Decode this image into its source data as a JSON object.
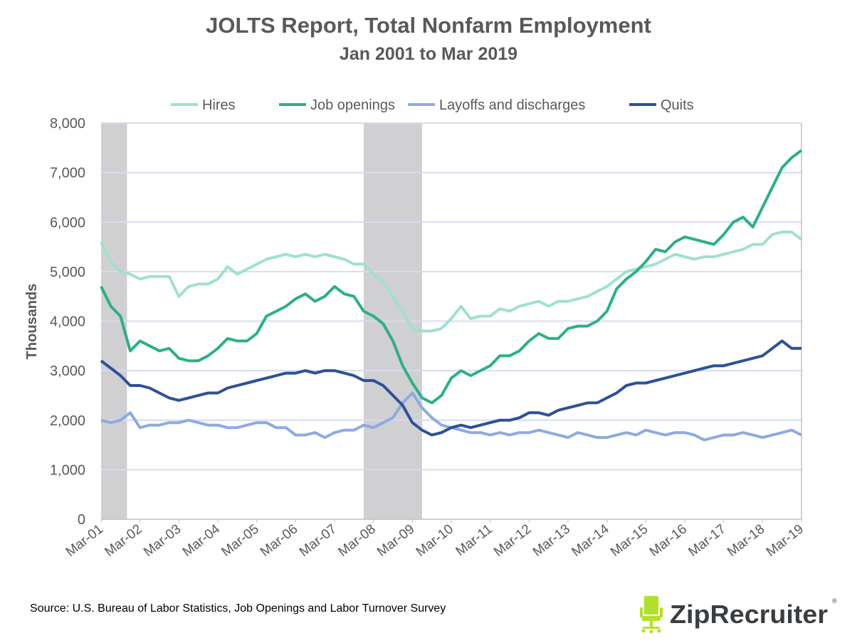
{
  "chart_data": {
    "type": "line",
    "title": "JOLTS Report, Total Nonfarm Employment",
    "subtitle": "Jan 2001 to Mar 2019",
    "ylabel": "Thousands",
    "xlabel": "",
    "ylim": [
      0,
      8000
    ],
    "yticks": [
      "0",
      "1,000",
      "2,000",
      "3,000",
      "4,000",
      "5,000",
      "6,000",
      "7,000",
      "8,000"
    ],
    "ytick_values": [
      0,
      1000,
      2000,
      3000,
      4000,
      5000,
      6000,
      7000,
      8000
    ],
    "xticks": [
      "Mar-01",
      "Mar-02",
      "Mar-03",
      "Mar-04",
      "Mar-05",
      "Mar-06",
      "Mar-07",
      "Mar-08",
      "Mar-09",
      "Mar-10",
      "Mar-11",
      "Mar-12",
      "Mar-13",
      "Mar-14",
      "Mar-15",
      "Mar-16",
      "Mar-17",
      "Mar-18",
      "Mar-19"
    ],
    "xrange": [
      "2001-03",
      "2019-03"
    ],
    "x_sampling": "quarterly from 2001-03 to 2019-03 (Mar, Jun, Sep, Dec)",
    "grid": "horizontal",
    "legend_position": "top",
    "recession_shading": [
      {
        "start": "2001-03",
        "end": "2001-11"
      },
      {
        "start": "2007-12",
        "end": "2009-06"
      }
    ],
    "recession_color": "#d0cfd1",
    "series": [
      {
        "name": "Hires",
        "color": "#9fe1cd",
        "values": [
          5600,
          5200,
          5000,
          4950,
          4850,
          4900,
          4900,
          4900,
          4500,
          4700,
          4750,
          4750,
          4850,
          5100,
          4950,
          5050,
          5150,
          5250,
          5300,
          5350,
          5300,
          5350,
          5300,
          5350,
          5300,
          5250,
          5150,
          5150,
          4950,
          4800,
          4500,
          4200,
          3850,
          3800,
          3800,
          3850,
          4050,
          4300,
          4050,
          4100,
          4100,
          4250,
          4200,
          4300,
          4350,
          4400,
          4300,
          4400,
          4400,
          4450,
          4500,
          4600,
          4700,
          4850,
          5000,
          5050,
          5100,
          5150,
          5250,
          5350,
          5300,
          5250,
          5300,
          5300,
          5350,
          5400,
          5450,
          5550,
          5550,
          5750,
          5800,
          5800,
          5650
        ]
      },
      {
        "name": "Job openings",
        "color": "#2bb087",
        "values": [
          4700,
          4300,
          4100,
          3400,
          3600,
          3500,
          3400,
          3450,
          3250,
          3200,
          3200,
          3300,
          3450,
          3650,
          3600,
          3600,
          3750,
          4100,
          4200,
          4300,
          4450,
          4550,
          4400,
          4500,
          4700,
          4550,
          4500,
          4200,
          4100,
          3950,
          3600,
          3100,
          2750,
          2450,
          2350,
          2500,
          2850,
          3000,
          2900,
          3000,
          3100,
          3300,
          3300,
          3400,
          3600,
          3750,
          3650,
          3650,
          3850,
          3900,
          3900,
          4000,
          4200,
          4650,
          4850,
          5000,
          5200,
          5450,
          5400,
          5600,
          5700,
          5650,
          5600,
          5550,
          5750,
          6000,
          6100,
          5900,
          6300,
          6700,
          7100,
          7300,
          7450
        ]
      },
      {
        "name": "Layoffs and discharges",
        "color": "#8eaadf",
        "values": [
          2000,
          1950,
          2000,
          2150,
          1850,
          1900,
          1900,
          1950,
          1950,
          2000,
          1950,
          1900,
          1900,
          1850,
          1850,
          1900,
          1950,
          1950,
          1850,
          1850,
          1700,
          1700,
          1750,
          1650,
          1750,
          1800,
          1800,
          1900,
          1850,
          1950,
          2050,
          2350,
          2550,
          2250,
          2050,
          1900,
          1850,
          1800,
          1750,
          1750,
          1700,
          1750,
          1700,
          1750,
          1750,
          1800,
          1750,
          1700,
          1650,
          1750,
          1700,
          1650,
          1650,
          1700,
          1750,
          1700,
          1800,
          1750,
          1700,
          1750,
          1750,
          1700,
          1600,
          1650,
          1700,
          1700,
          1750,
          1700,
          1650,
          1700,
          1750,
          1800,
          1700
        ]
      },
      {
        "name": "Quits",
        "color": "#2c5196",
        "values": [
          3200,
          3050,
          2900,
          2700,
          2700,
          2650,
          2550,
          2450,
          2400,
          2450,
          2500,
          2550,
          2550,
          2650,
          2700,
          2750,
          2800,
          2850,
          2900,
          2950,
          2950,
          3000,
          2950,
          3000,
          3000,
          2950,
          2900,
          2800,
          2800,
          2700,
          2500,
          2300,
          1950,
          1800,
          1700,
          1750,
          1850,
          1900,
          1850,
          1900,
          1950,
          2000,
          2000,
          2050,
          2150,
          2150,
          2100,
          2200,
          2250,
          2300,
          2350,
          2350,
          2450,
          2550,
          2700,
          2750,
          2750,
          2800,
          2850,
          2900,
          2950,
          3000,
          3050,
          3100,
          3100,
          3150,
          3200,
          3250,
          3300,
          3450,
          3600,
          3450,
          3450
        ]
      }
    ],
    "source": "Source: U.S. Bureau of Labor Statistics, Job Openings and Labor Turnover Survey"
  },
  "logo": {
    "text": "ZipRecruiter",
    "mark": "®",
    "color": "#b1e12a",
    "text_color": "#3b3e41"
  }
}
